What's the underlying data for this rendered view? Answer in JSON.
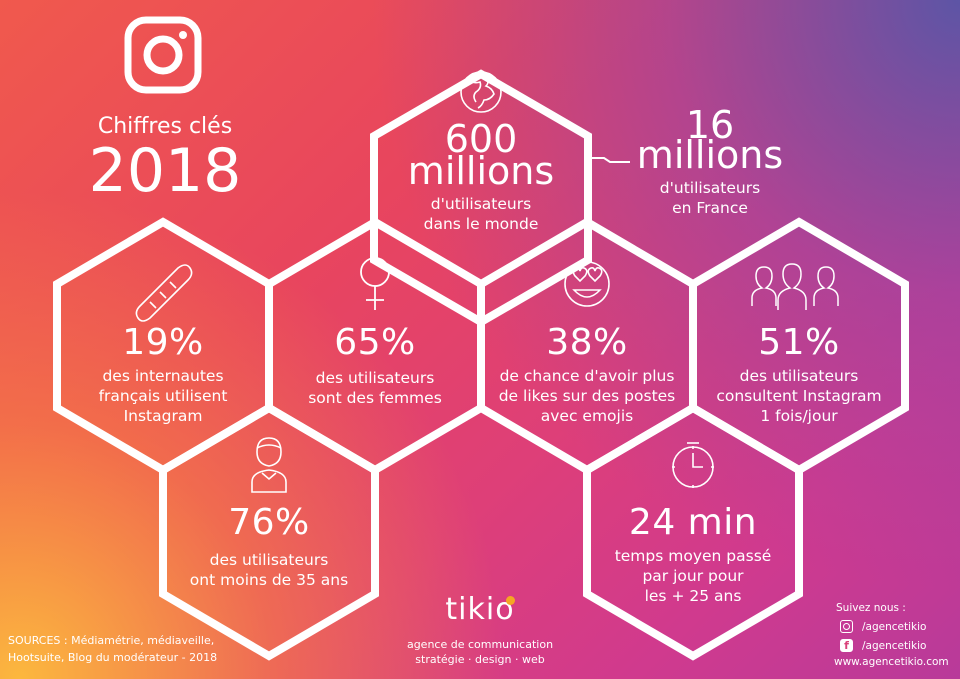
{
  "header": {
    "line1": "Chiffres clés",
    "line2": "2018"
  },
  "stats": {
    "world": {
      "value1": "600",
      "value2": "millions",
      "line1": "d'utilisateurs",
      "line2": "dans le monde",
      "icon": "globe-icon"
    },
    "france": {
      "value1": "16",
      "value2": "millions",
      "line1": "d'utilisateurs",
      "line2": "en France"
    },
    "bread": {
      "value": "19%",
      "line1": "des internautes",
      "line2": "français utilisent",
      "line3": "Instagram",
      "icon": "baguette-icon"
    },
    "women": {
      "value": "65%",
      "line1": "des utilisateurs",
      "line2": "sont des femmes",
      "icon": "female-symbol-icon"
    },
    "emoji": {
      "value": "38%",
      "line1": "de chance d'avoir plus",
      "line2": "de likes sur des postes",
      "line3": "avec emojis",
      "icon": "heart-eyes-emoji-icon"
    },
    "daily": {
      "value": "51%",
      "line1": "des utilisateurs",
      "line2": "consultent Instagram",
      "line3": "1 fois/jour",
      "icon": "people-icon"
    },
    "young": {
      "value": "76%",
      "line1": "des utilisateurs",
      "line2": "ont moins de 35 ans",
      "icon": "young-person-icon"
    },
    "time": {
      "value": "24 min",
      "line1": "temps moyen passé",
      "line2": "par jour pour",
      "line3": "les + 25 ans",
      "icon": "clock-icon"
    }
  },
  "sources": {
    "line1": "SOURCES : Médiamétrie, médiaveille,",
    "line2": "Hootsuite, Blog du modérateur - 2018"
  },
  "brand": {
    "name": "tikio",
    "tagline1": "agence de communication",
    "tagline2": "stratégie · design · web"
  },
  "follow": {
    "title": "Suivez nous :",
    "instagram": "/agencetikio",
    "facebook": "/agencetikio",
    "website": "www.agencetikio.com"
  },
  "colors": {
    "white": "#ffffff",
    "tikio_dot": "#f5a623"
  }
}
